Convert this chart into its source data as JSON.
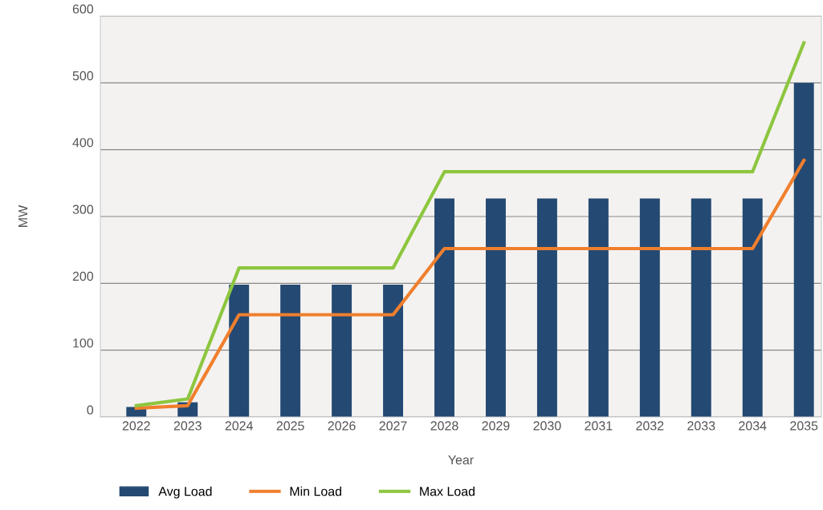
{
  "chart_data": {
    "type": "bar",
    "xlabel": "Year",
    "ylabel": "MW",
    "categories": [
      "2022",
      "2023",
      "2024",
      "2025",
      "2026",
      "2027",
      "2028",
      "2029",
      "2030",
      "2031",
      "2032",
      "2033",
      "2034",
      "2035"
    ],
    "series": [
      {
        "name": "Avg Load",
        "color": "#244a73",
        "values": [
          15,
          22,
          198,
          198,
          198,
          198,
          327,
          327,
          327,
          327,
          327,
          327,
          327,
          500
        ]
      },
      {
        "name": "Min Load",
        "type": "line",
        "color": "#f07f2d",
        "values": [
          13,
          17,
          153,
          153,
          153,
          153,
          252,
          252,
          252,
          252,
          252,
          252,
          252,
          384
        ]
      },
      {
        "name": "Max Load",
        "type": "line",
        "color": "#8dc63f",
        "values": [
          17,
          27,
          223,
          223,
          223,
          223,
          367,
          367,
          367,
          367,
          367,
          367,
          367,
          560
        ]
      }
    ],
    "ylim": [
      0,
      600
    ],
    "yticks": [
      0,
      100,
      200,
      300,
      400,
      500,
      600
    ],
    "grid": "y",
    "legend": "bottom"
  }
}
